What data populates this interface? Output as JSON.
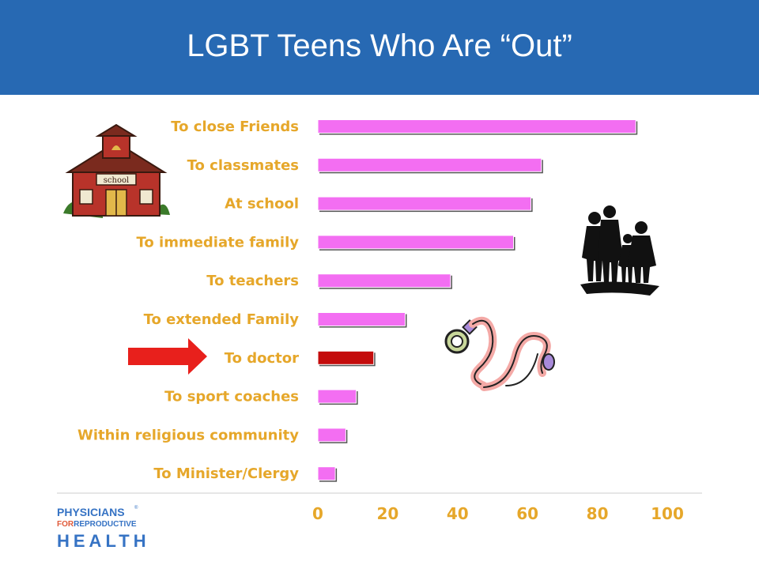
{
  "header": {
    "title": "LGBT Teens Who Are “Out”"
  },
  "colors": {
    "header_bg": "#2769b3",
    "bar": "#f36ef2",
    "bar_highlight": "#c40c0c",
    "label": "#e6a72a",
    "arrow": "#e8201c"
  },
  "chart_data": {
    "type": "bar",
    "orientation": "horizontal",
    "categories": [
      "To close Friends",
      "To classmates",
      "At school",
      "To immediate family",
      "To teachers",
      "To extended Family",
      "To doctor",
      "To sport coaches",
      "Within religious community",
      "To Minister/Clergy"
    ],
    "values": [
      91,
      64,
      61,
      56,
      38,
      25,
      16,
      11,
      8,
      5
    ],
    "highlight_category": "To doctor",
    "xlim": [
      0,
      100
    ],
    "xticks": [
      0,
      20,
      40,
      60,
      80,
      100
    ],
    "grid": false
  },
  "logo": {
    "line1": "PHYSICIANS",
    "line2_for": "FOR",
    "line2_rest": "REPRODUCTIVE",
    "line3": "HEALTH",
    "reg": "®"
  },
  "icons": [
    "schoolhouse-icon",
    "family-silhouette-icon",
    "stethoscope-icon",
    "arrow-right-icon"
  ]
}
